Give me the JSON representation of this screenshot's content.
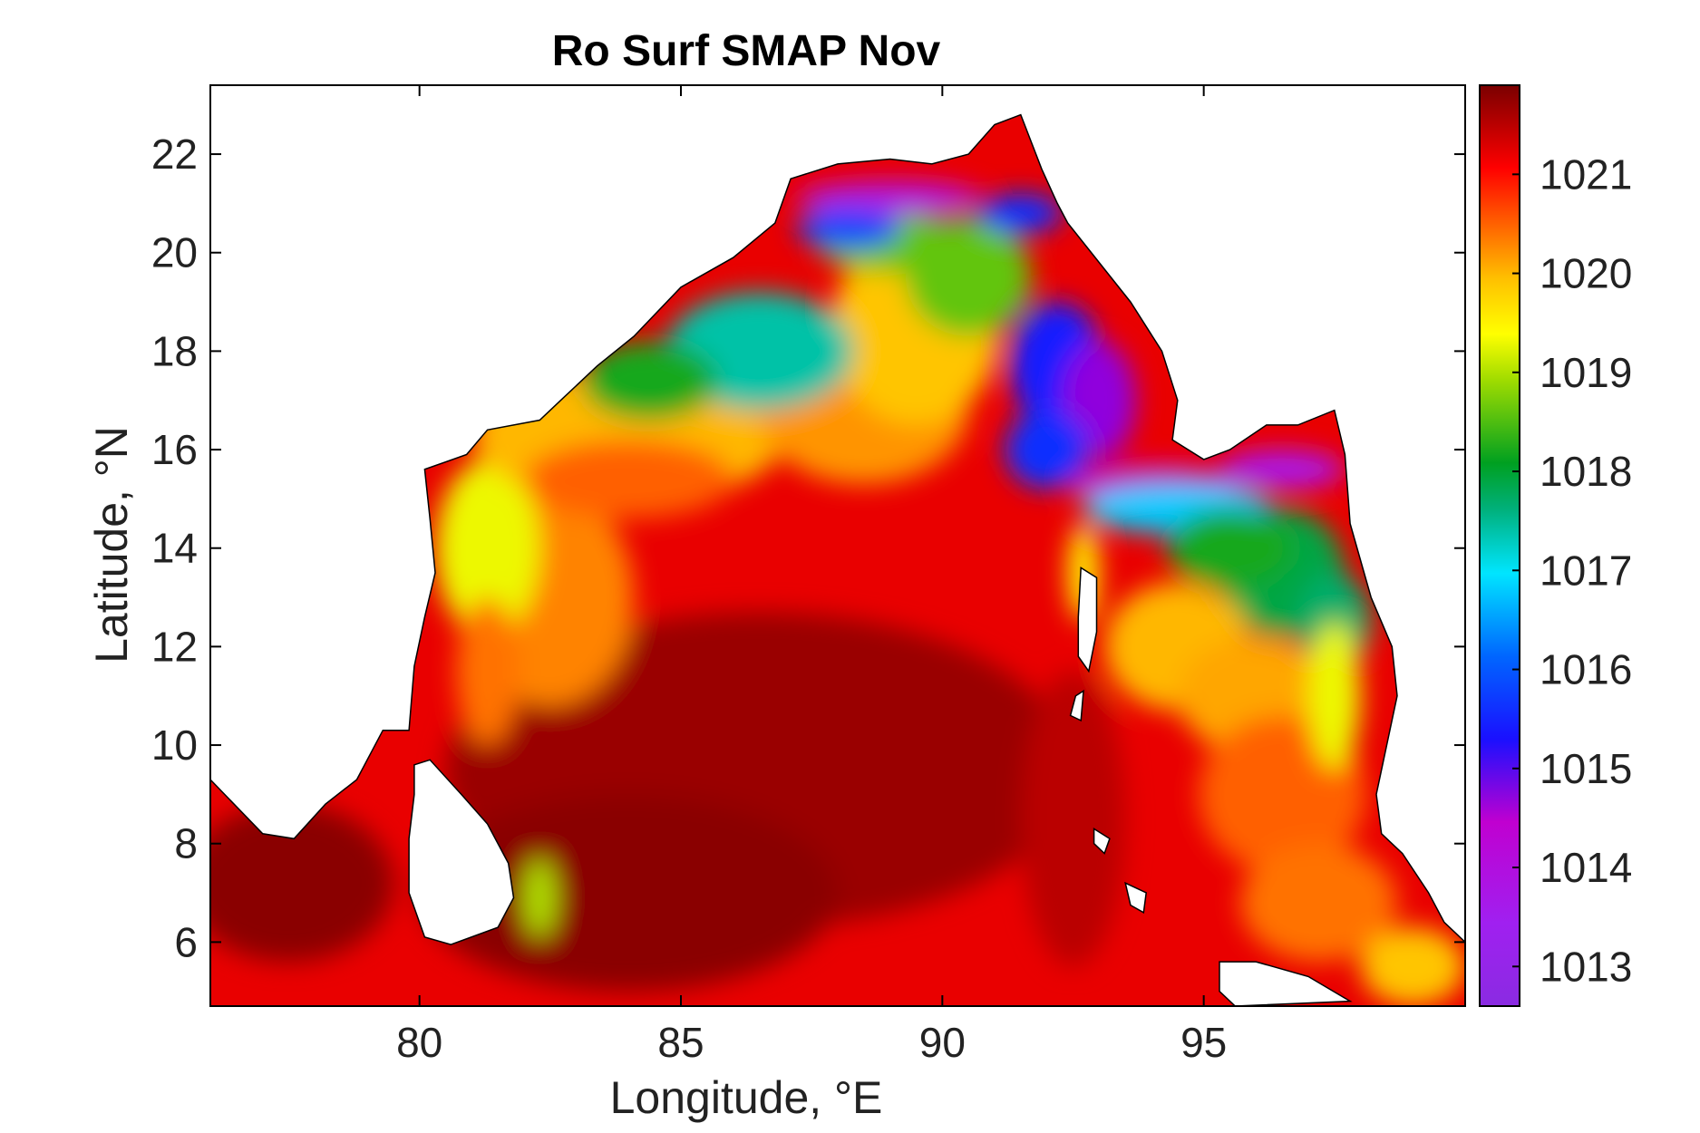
{
  "chart_data": {
    "type": "heatmap",
    "title": "Ro Surf SMAP Nov",
    "xlabel": "Longitude, °E",
    "ylabel": "Latitude, °N",
    "xlim": [
      76,
      100
    ],
    "ylim": [
      4.7,
      23.4
    ],
    "x_ticks": [
      80,
      85,
      90,
      95
    ],
    "y_ticks": [
      6,
      8,
      10,
      12,
      14,
      16,
      18,
      20,
      22
    ],
    "colorbar": {
      "min": 1012.6,
      "max": 1021.9,
      "ticks": [
        1013,
        1014,
        1015,
        1016,
        1017,
        1018,
        1019,
        1020,
        1021
      ],
      "colormap": "jet-like (purple → blue → cyan → green → yellow → orange → red → dark red)"
    },
    "grid": false,
    "approx_field_values": [
      {
        "region": "head of Bay coast near 88-91°E, 21°N",
        "value": 1013.8
      },
      {
        "region": "northern Bay 86-88°E, 18°N",
        "value": 1017.5
      },
      {
        "region": "central north Bay 89°E, 18°N",
        "value": 1019.8
      },
      {
        "region": "Myanmar coast 93°E, 17°N",
        "value": 1015.5
      },
      {
        "region": "Andaman Sea north 96°E, 14°N",
        "value": 1018.0
      },
      {
        "region": "central Bay 85-90°E, 8-12°N",
        "value": 1021.5
      },
      {
        "region": "Andaman Sea 95°E, 10°N",
        "value": 1020.5
      },
      {
        "region": "south-east corner 99°E, 6°N",
        "value": 1019.8
      }
    ]
  }
}
